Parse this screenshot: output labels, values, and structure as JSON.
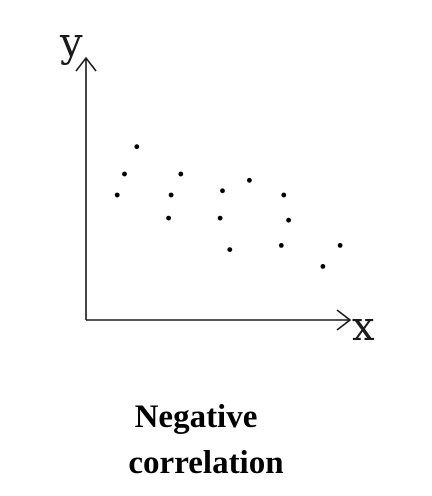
{
  "chart_data": {
    "type": "scatter",
    "title": "",
    "xlabel": "x",
    "ylabel": "y",
    "grid": false,
    "xlim": [
      0,
      10
    ],
    "ylim": [
      0,
      10
    ],
    "points": [
      {
        "x": 1.5,
        "y": 7.3
      },
      {
        "x": 1.0,
        "y": 6.0
      },
      {
        "x": 0.7,
        "y": 5.0
      },
      {
        "x": 3.3,
        "y": 6.0
      },
      {
        "x": 2.9,
        "y": 5.0
      },
      {
        "x": 2.8,
        "y": 3.9
      },
      {
        "x": 5.0,
        "y": 5.2
      },
      {
        "x": 6.1,
        "y": 5.7
      },
      {
        "x": 4.9,
        "y": 3.9
      },
      {
        "x": 5.3,
        "y": 2.4
      },
      {
        "x": 7.5,
        "y": 5.0
      },
      {
        "x": 7.7,
        "y": 3.8
      },
      {
        "x": 7.4,
        "y": 2.6
      },
      {
        "x": 9.1,
        "y": 1.6
      },
      {
        "x": 9.8,
        "y": 2.6
      }
    ]
  },
  "caption": {
    "line1": "Negative",
    "line2": "correlation"
  },
  "colors": {
    "axis": "#1a1a1a",
    "point": "#000000",
    "text": "#000000"
  }
}
